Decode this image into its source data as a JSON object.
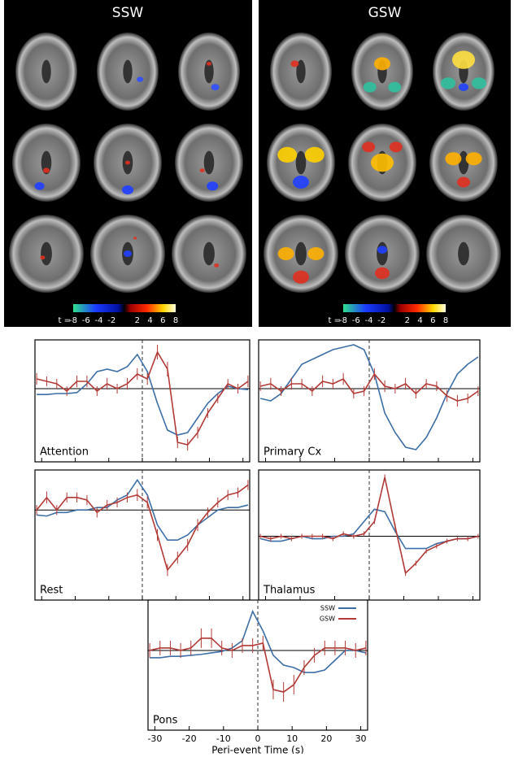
{
  "images": [
    {
      "title": "SSW",
      "colorbar_label": "t =",
      "colorbar_ticks": [
        -8,
        -6,
        -4,
        -2,
        2,
        4,
        6,
        8
      ]
    },
    {
      "title": "GSW",
      "colorbar_label": "t =",
      "colorbar_ticks": [
        -8,
        -6,
        -4,
        -2,
        2,
        4,
        6,
        8
      ]
    }
  ],
  "chart_data": [
    {
      "type": "line",
      "label": "Attention",
      "x": [
        -31.5,
        -28.5,
        -25.5,
        -22.5,
        -19.5,
        -16.5,
        -13.5,
        -10.5,
        -7.5,
        -4.5,
        -1.5,
        1.5,
        4.5,
        7.5,
        10.5,
        13.5,
        16.5,
        19.5,
        22.5,
        25.5,
        28.5,
        31.5
      ],
      "series": [
        {
          "name": "SSW",
          "color": "#3d6fa6",
          "values": [
            -0.12,
            -0.12,
            -0.1,
            -0.1,
            -0.08,
            0.1,
            0.35,
            0.4,
            0.35,
            0.45,
            0.7,
            0.35,
            -0.3,
            -0.85,
            -0.95,
            -0.9,
            -0.6,
            -0.3,
            -0.1,
            0.05,
            0.0,
            -0.02
          ]
        },
        {
          "name": "GSW",
          "color": "#b23a36",
          "values": [
            0.2,
            0.15,
            0.1,
            -0.05,
            0.15,
            0.15,
            -0.05,
            0.1,
            0.0,
            0.1,
            0.3,
            0.2,
            0.75,
            0.4,
            -1.1,
            -1.15,
            -0.9,
            -0.5,
            -0.2,
            0.1,
            0.0,
            0.15
          ],
          "errors": [
            0.12,
            0.1,
            0.1,
            0.1,
            0.12,
            0.12,
            0.1,
            0.12,
            0.1,
            0.12,
            0.12,
            0.12,
            0.15,
            0.15,
            0.12,
            0.12,
            0.12,
            0.1,
            0.1,
            0.1,
            0.1,
            0.12
          ]
        }
      ],
      "xlim": [
        -32,
        32
      ],
      "xticks": [
        -30,
        -20,
        -10,
        0,
        10,
        20,
        30
      ],
      "ylim": [
        -1.5,
        1
      ],
      "hline": 0,
      "vline": 0
    },
    {
      "type": "line",
      "label": "Primary Cx",
      "x": [
        -31.5,
        -28.5,
        -25.5,
        -22.5,
        -19.5,
        -16.5,
        -13.5,
        -10.5,
        -7.5,
        -4.5,
        -1.5,
        1.5,
        4.5,
        7.5,
        10.5,
        13.5,
        16.5,
        19.5,
        22.5,
        25.5,
        28.5,
        31.5
      ],
      "series": [
        {
          "name": "SSW",
          "color": "#3d6fa6",
          "values": [
            -0.2,
            -0.25,
            -0.1,
            0.2,
            0.5,
            0.6,
            0.7,
            0.8,
            0.85,
            0.9,
            0.8,
            0.3,
            -0.5,
            -0.9,
            -1.2,
            -1.25,
            -1.0,
            -0.6,
            -0.1,
            0.3,
            0.5,
            0.65
          ]
        },
        {
          "name": "GSW",
          "color": "#b23a36",
          "values": [
            0.05,
            0.1,
            -0.05,
            0.1,
            0.1,
            -0.05,
            0.15,
            0.1,
            0.2,
            -0.1,
            -0.05,
            0.3,
            0.05,
            0.0,
            0.1,
            -0.1,
            0.1,
            0.05,
            -0.15,
            -0.25,
            -0.2,
            -0.05
          ],
          "errors": [
            0.1,
            0.12,
            0.1,
            0.12,
            0.1,
            0.1,
            0.12,
            0.1,
            0.12,
            0.1,
            0.1,
            0.12,
            0.12,
            0.1,
            0.12,
            0.1,
            0.1,
            0.1,
            0.12,
            0.12,
            0.1,
            0.1
          ]
        }
      ],
      "xlim": [
        -32,
        32
      ],
      "xticks": [
        -30,
        -20,
        -10,
        0,
        10,
        20,
        30
      ],
      "ylim": [
        -1.5,
        1
      ],
      "hline": 0,
      "vline": 0
    },
    {
      "type": "line",
      "label": "Rest",
      "x": [
        -31.5,
        -28.5,
        -25.5,
        -22.5,
        -19.5,
        -16.5,
        -13.5,
        -10.5,
        -7.5,
        -4.5,
        -1.5,
        1.5,
        4.5,
        7.5,
        10.5,
        13.5,
        16.5,
        19.5,
        22.5,
        25.5,
        28.5,
        31.5
      ],
      "series": [
        {
          "name": "SSW",
          "color": "#3d6fa6",
          "values": [
            -0.1,
            -0.12,
            -0.05,
            -0.05,
            0.0,
            0.0,
            0.05,
            0.05,
            0.2,
            0.3,
            0.6,
            0.3,
            -0.3,
            -0.6,
            -0.6,
            -0.5,
            -0.3,
            -0.15,
            0.0,
            0.05,
            0.05,
            0.1
          ]
        },
        {
          "name": "GSW",
          "color": "#b23a36",
          "values": [
            0.0,
            0.25,
            0.0,
            0.25,
            0.25,
            0.2,
            -0.05,
            0.1,
            0.15,
            0.25,
            0.3,
            0.15,
            -0.5,
            -1.2,
            -0.95,
            -0.7,
            -0.3,
            -0.05,
            0.15,
            0.3,
            0.35,
            0.5
          ],
          "errors": [
            0.1,
            0.12,
            0.1,
            0.1,
            0.1,
            0.1,
            0.1,
            0.1,
            0.1,
            0.1,
            0.12,
            0.12,
            0.12,
            0.12,
            0.12,
            0.12,
            0.12,
            0.1,
            0.1,
            0.1,
            0.1,
            0.1
          ]
        }
      ],
      "xlim": [
        -32,
        32
      ],
      "xticks": [
        -30,
        -20,
        -10,
        0,
        10,
        20,
        30
      ],
      "ylim": [
        -1.8,
        0.8
      ],
      "hline": 0,
      "vline": 0
    },
    {
      "type": "line",
      "label": "Thalamus",
      "x": [
        -31.5,
        -28.5,
        -25.5,
        -22.5,
        -19.5,
        -16.5,
        -13.5,
        -10.5,
        -7.5,
        -4.5,
        -1.5,
        1.5,
        4.5,
        7.5,
        10.5,
        13.5,
        16.5,
        19.5,
        22.5,
        25.5,
        28.5,
        31.5
      ],
      "series": [
        {
          "name": "SSW",
          "color": "#3d6fa6",
          "values": [
            -0.05,
            -0.1,
            -0.1,
            -0.05,
            0.0,
            -0.05,
            -0.05,
            0.0,
            0.0,
            0.05,
            0.3,
            0.55,
            0.5,
            0.1,
            -0.25,
            -0.25,
            -0.25,
            -0.15,
            -0.1,
            -0.05,
            -0.05,
            0.0
          ]
        },
        {
          "name": "GSW",
          "color": "#b23a36",
          "values": [
            0.0,
            -0.05,
            0.0,
            -0.05,
            0.0,
            0.0,
            0.0,
            -0.05,
            0.05,
            0.0,
            0.05,
            0.3,
            1.2,
            0.2,
            -0.75,
            -0.55,
            -0.3,
            -0.2,
            -0.1,
            -0.05,
            -0.05,
            0.0
          ],
          "errors": [
            0.05,
            0.05,
            0.05,
            0.05,
            0.05,
            0.05,
            0.05,
            0.05,
            0.05,
            0.05,
            0.05,
            0.05,
            0.06,
            0.06,
            0.06,
            0.05,
            0.05,
            0.05,
            0.05,
            0.05,
            0.05,
            0.05
          ]
        }
      ],
      "xlim": [
        -32,
        32
      ],
      "xticks": [
        -30,
        -20,
        -10,
        0,
        10,
        20,
        30
      ],
      "ylim": [
        -1.3,
        1.35
      ],
      "hline": 0,
      "vline": 0
    },
    {
      "type": "line",
      "label": "Pons",
      "x": [
        -31.5,
        -28.5,
        -25.5,
        -22.5,
        -19.5,
        -16.5,
        -13.5,
        -10.5,
        -7.5,
        -4.5,
        -1.5,
        1.5,
        4.5,
        7.5,
        10.5,
        13.5,
        16.5,
        19.5,
        22.5,
        25.5,
        28.5,
        31.5
      ],
      "series": [
        {
          "name": "SSW",
          "color": "#3d6fa6",
          "values": [
            -0.15,
            -0.15,
            -0.12,
            -0.12,
            -0.1,
            -0.08,
            -0.05,
            -0.02,
            0.05,
            0.2,
            0.8,
            0.4,
            -0.1,
            -0.3,
            -0.35,
            -0.45,
            -0.45,
            -0.4,
            -0.2,
            0.0,
            0.0,
            -0.05
          ]
        },
        {
          "name": "GSW",
          "color": "#b23a36",
          "values": [
            0.0,
            0.05,
            0.05,
            0.0,
            0.05,
            0.25,
            0.25,
            0.05,
            0.0,
            0.1,
            0.1,
            0.15,
            -0.8,
            -0.85,
            -0.7,
            -0.35,
            -0.1,
            0.05,
            0.05,
            0.05,
            0.0,
            0.05
          ],
          "errors": [
            0.15,
            0.15,
            0.15,
            0.15,
            0.15,
            0.2,
            0.2,
            0.15,
            0.15,
            0.15,
            0.15,
            0.15,
            0.2,
            0.2,
            0.2,
            0.15,
            0.15,
            0.15,
            0.15,
            0.15,
            0.15,
            0.15
          ]
        }
      ],
      "xlim": [
        -32,
        32
      ],
      "xticks": [
        -30,
        -20,
        -10,
        0,
        10,
        20,
        30
      ],
      "ylim": [
        -1.63,
        1.03
      ],
      "hline": 0,
      "vline": 0,
      "xlabel": "Peri-event Time (s)",
      "tick_labels": true,
      "legend": "upper right"
    }
  ]
}
